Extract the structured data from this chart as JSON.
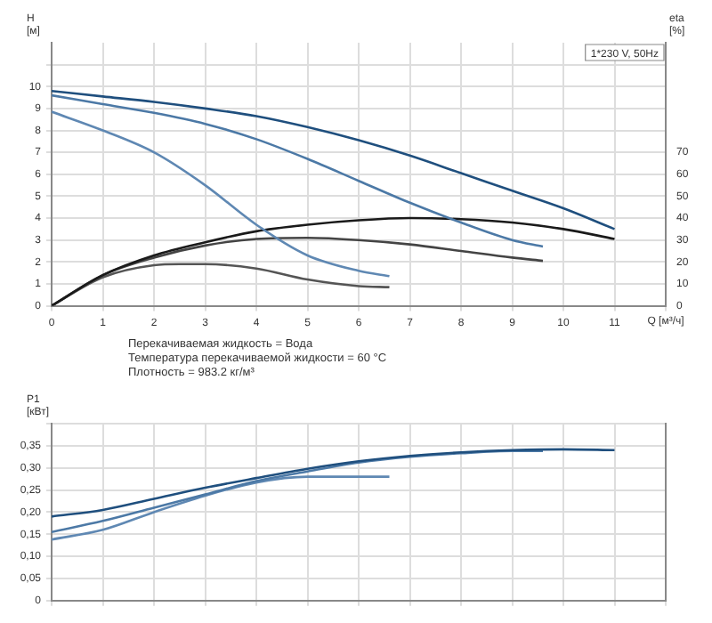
{
  "chart_data": [
    {
      "type": "line",
      "subtitle": "1*230 V, 50Hz",
      "xlabel": "Q [м³/ч]",
      "ylabel": "H [м]",
      "y2label": "eta [%]",
      "xlim": [
        0,
        12
      ],
      "xticks": [
        0,
        1,
        2,
        3,
        4,
        5,
        6,
        7,
        8,
        9,
        10,
        11,
        {
          "value": 12,
          "label": null
        }
      ],
      "ylim": [
        0,
        12
      ],
      "yticks": [
        0,
        1,
        2,
        3,
        4,
        5,
        6,
        7,
        8,
        9,
        10,
        {
          "value": 11,
          "label": null
        }
      ],
      "y2lim": [
        0,
        120
      ],
      "y2ticks": [
        0,
        10,
        20,
        30,
        40,
        50,
        60,
        70
      ],
      "grid": true,
      "legend": false,
      "marker": "none",
      "line_style": "solid",
      "annotations": [
        "Перекачиваемая жидкость = Вода",
        "Температура перекачиваемой жидкости = 60 °C",
        "Плотность = 983.2 кг/м³"
      ],
      "series": [
        {
          "color": "#1f4f7e",
          "x": [
            0,
            1,
            2,
            3,
            4,
            5,
            6,
            7,
            8,
            9,
            10,
            11
          ],
          "values": [
            9.8,
            9.55,
            9.3,
            9.0,
            8.65,
            8.15,
            7.55,
            6.85,
            6.05,
            5.25,
            4.45,
            3.5
          ]
        },
        {
          "color": "#4c79a6",
          "x": [
            0,
            1,
            2,
            3,
            4,
            5,
            6,
            7,
            8,
            9,
            9.6
          ],
          "values": [
            9.6,
            9.2,
            8.8,
            8.3,
            7.6,
            6.7,
            5.7,
            4.7,
            3.8,
            3.0,
            2.7
          ]
        },
        {
          "color": "#5f88b3",
          "x": [
            0,
            1,
            2,
            3,
            4,
            5,
            6,
            6.6
          ],
          "values": [
            8.85,
            8.0,
            7.0,
            5.5,
            3.7,
            2.3,
            1.6,
            1.35
          ]
        },
        {
          "color": "#1a1a1a",
          "axis": "y2",
          "x": [
            0,
            1,
            2,
            3,
            4,
            5,
            6,
            7,
            8,
            9,
            10,
            11
          ],
          "values": [
            0,
            14,
            23,
            29,
            34,
            37,
            39,
            40,
            39.5,
            38,
            35,
            30.5
          ]
        },
        {
          "color": "#444444",
          "axis": "y2",
          "x": [
            0,
            1,
            2,
            3,
            4,
            5,
            6,
            7,
            8,
            9,
            9.6
          ],
          "values": [
            0,
            14,
            22,
            27.5,
            30.5,
            31,
            30,
            28,
            25,
            22,
            20.5
          ]
        },
        {
          "color": "#555555",
          "axis": "y2",
          "x": [
            0,
            1,
            2,
            2.5,
            3,
            4,
            5,
            6,
            6.6
          ],
          "values": [
            0,
            13,
            18.5,
            19,
            19,
            17,
            12,
            9,
            8.5
          ]
        }
      ]
    },
    {
      "type": "line",
      "ylabel": "P1 [кВт]",
      "tick_labels": "y",
      "xlim": [
        0,
        12
      ],
      "xticks": [
        0,
        1,
        2,
        3,
        4,
        5,
        6,
        7,
        8,
        9,
        10,
        11,
        12
      ],
      "ylim": [
        0,
        0.4
      ],
      "yticks": [
        0,
        {
          "value": 0.05,
          "label": "0,05"
        },
        {
          "value": 0.1,
          "label": "0,10"
        },
        {
          "value": 0.15,
          "label": "0,15"
        },
        {
          "value": 0.2,
          "label": "0,20"
        },
        {
          "value": 0.25,
          "label": "0,25"
        },
        {
          "value": 0.3,
          "label": "0,30"
        },
        {
          "value": 0.35,
          "label": "0,35"
        },
        {
          "value": 0.4,
          "label": null
        }
      ],
      "grid": true,
      "legend": false,
      "marker": "none",
      "line_style": "solid",
      "series": [
        {
          "color": "#1f4f7e",
          "x": [
            0,
            1,
            2,
            3,
            4,
            5,
            6,
            7,
            8,
            9,
            10,
            11
          ],
          "values": [
            0.19,
            0.205,
            0.23,
            0.255,
            0.277,
            0.298,
            0.315,
            0.327,
            0.335,
            0.34,
            0.342,
            0.34
          ]
        },
        {
          "color": "#4c79a6",
          "x": [
            0,
            1,
            2,
            3,
            4,
            5,
            6,
            7,
            8,
            9,
            9.6
          ],
          "values": [
            0.155,
            0.18,
            0.21,
            0.24,
            0.27,
            0.292,
            0.312,
            0.325,
            0.333,
            0.338,
            0.338
          ]
        },
        {
          "color": "#5f88b3",
          "x": [
            0,
            1,
            2,
            3,
            4,
            5,
            6,
            6.6
          ],
          "values": [
            0.138,
            0.16,
            0.2,
            0.237,
            0.267,
            0.28,
            0.28,
            0.28
          ]
        }
      ]
    }
  ]
}
